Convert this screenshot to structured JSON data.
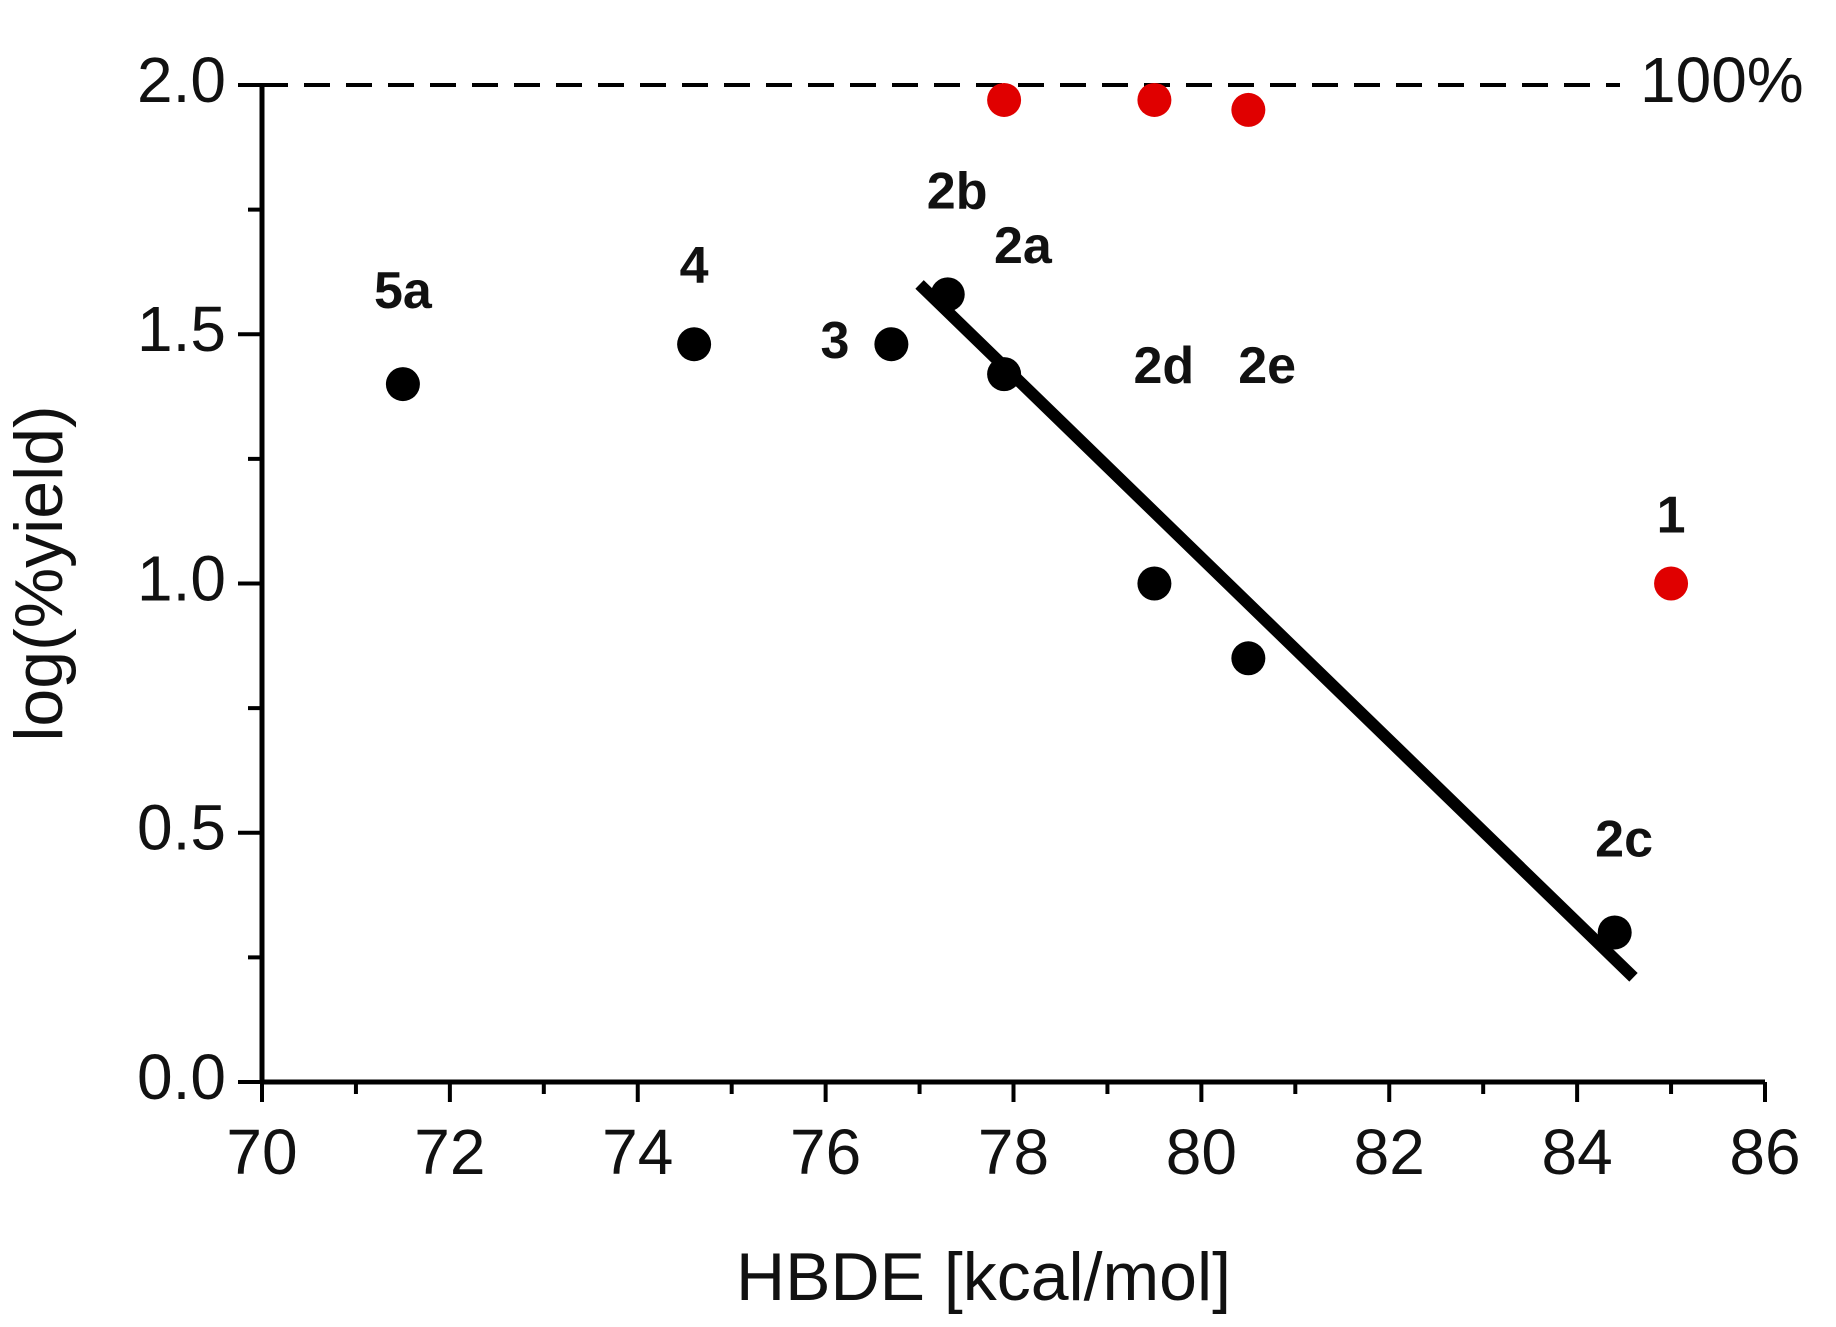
{
  "chart_data": {
    "type": "scatter",
    "title": "",
    "xlabel": "HBDE [kcal/mol]",
    "ylabel": "log(%yield)",
    "xlim": [
      70,
      86
    ],
    "ylim": [
      0,
      2
    ],
    "x_ticks": [
      70,
      72,
      74,
      76,
      78,
      80,
      82,
      84,
      86
    ],
    "x_tick_labels": [
      "70",
      "72",
      "74",
      "76",
      "78",
      "80",
      "82",
      "84",
      "86"
    ],
    "y_ticks": [
      0,
      0.5,
      1,
      1.5,
      2
    ],
    "y_tick_labels": [
      "0.0",
      "0.5",
      "1.0",
      "1.5",
      "2.0"
    ],
    "grid": false,
    "reference_line": {
      "y": 2.0,
      "label": "100%",
      "style": "dashed"
    },
    "colors": {
      "black": "#000000",
      "red": "#e00000"
    },
    "series": [
      {
        "color": "#000000",
        "points": [
          {
            "x": 71.5,
            "y": 1.4
          },
          {
            "x": 74.6,
            "y": 1.48
          },
          {
            "x": 76.7,
            "y": 1.48
          },
          {
            "x": 77.3,
            "y": 1.58
          },
          {
            "x": 77.9,
            "y": 1.42
          },
          {
            "x": 79.5,
            "y": 1.0
          },
          {
            "x": 80.5,
            "y": 0.85
          },
          {
            "x": 84.4,
            "y": 0.3
          }
        ]
      },
      {
        "color": "#e00000",
        "points": [
          {
            "x": 77.9,
            "y": 1.97
          },
          {
            "x": 79.5,
            "y": 1.97
          },
          {
            "x": 80.5,
            "y": 1.95
          },
          {
            "x": 85.0,
            "y": 1.0
          }
        ]
      }
    ],
    "fit_line": {
      "x": [
        77.0,
        84.6
      ],
      "y": [
        1.6,
        0.21
      ],
      "color": "#000000"
    },
    "annotations": [
      {
        "text": "5a",
        "x": 71.5,
        "y": 1.58
      },
      {
        "text": "4",
        "x": 74.6,
        "y": 1.63
      },
      {
        "text": "3",
        "x": 76.1,
        "y": 1.48
      },
      {
        "text": "2b",
        "x": 77.4,
        "y": 1.78
      },
      {
        "text": "2a",
        "x": 78.1,
        "y": 1.67
      },
      {
        "text": "2d",
        "x": 79.6,
        "y": 1.43
      },
      {
        "text": "2e",
        "x": 80.7,
        "y": 1.43
      },
      {
        "text": "1",
        "x": 85.0,
        "y": 1.13
      },
      {
        "text": "2c",
        "x": 84.5,
        "y": 0.48
      }
    ]
  }
}
